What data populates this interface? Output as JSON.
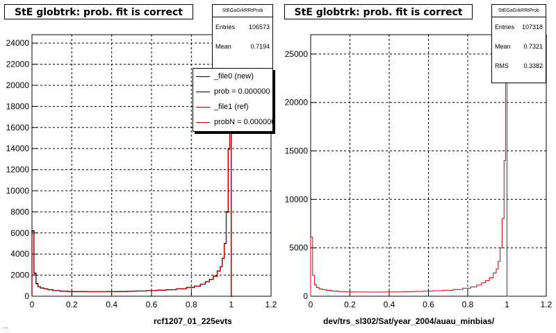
{
  "footer_text": "...",
  "chart_data": [
    {
      "type": "bar",
      "title": "StE globtrk: prob. fit is correct",
      "xlabel": "rcf1207_01_225evts",
      "ylabel": "",
      "xlim": [
        0,
        1.2
      ],
      "ylim": [
        0,
        24800
      ],
      "x_ticks": [
        "0",
        "0.2",
        "0.4",
        "0.6",
        "0.8",
        "1",
        "1.2"
      ],
      "y_ticks": [
        "0",
        "2000",
        "4000",
        "6000",
        "8000",
        "10000",
        "12000",
        "14000",
        "16000",
        "18000",
        "20000",
        "22000",
        "24000"
      ],
      "grid": true,
      "stats": {
        "header": "StEGaGrkRRtProb",
        "entries_label": "Entries",
        "entries": "106573",
        "mean_label": "Mean",
        "mean": "0.7194"
      },
      "legend": {
        "placement": "top-right",
        "entries": [
          "_file0 (new)",
          "prob = 0.000000",
          "_file1 (ref)",
          "probN = 0.000000"
        ],
        "colors": [
          "#000000",
          "#000000",
          "#cc0000",
          "#cc0000"
        ]
      },
      "series": [
        {
          "name": "_file0 (new)",
          "color": "#000000",
          "x": [
            0.005,
            0.015,
            0.025,
            0.035,
            0.05,
            0.07,
            0.09,
            0.12,
            0.16,
            0.2,
            0.25,
            0.3,
            0.35,
            0.4,
            0.45,
            0.5,
            0.55,
            0.6,
            0.65,
            0.7,
            0.75,
            0.8,
            0.83,
            0.86,
            0.88,
            0.9,
            0.92,
            0.94,
            0.95,
            0.96,
            0.97,
            0.98,
            0.99,
            0.995,
            1.005
          ],
          "values": [
            6200,
            2200,
            1200,
            900,
            780,
            700,
            620,
            540,
            480,
            450,
            440,
            430,
            430,
            440,
            450,
            470,
            500,
            530,
            570,
            620,
            700,
            830,
            960,
            1150,
            1380,
            1600,
            1900,
            2400,
            2800,
            3600,
            5000,
            8000,
            14000,
            24800,
            0
          ]
        },
        {
          "name": "_file1 (ref)",
          "color": "#cc0000",
          "x": [
            0.005,
            0.015,
            0.025,
            0.035,
            0.05,
            0.07,
            0.09,
            0.12,
            0.16,
            0.2,
            0.25,
            0.3,
            0.35,
            0.4,
            0.45,
            0.5,
            0.55,
            0.6,
            0.65,
            0.7,
            0.75,
            0.8,
            0.83,
            0.86,
            0.88,
            0.9,
            0.92,
            0.94,
            0.95,
            0.96,
            0.97,
            0.98,
            0.99,
            0.995,
            1.005
          ],
          "values": [
            6000,
            2100,
            1150,
            880,
            760,
            690,
            610,
            530,
            470,
            445,
            435,
            425,
            425,
            435,
            445,
            465,
            495,
            525,
            565,
            615,
            690,
            820,
            950,
            1140,
            1370,
            1590,
            1880,
            2380,
            2780,
            3580,
            4980,
            7950,
            13900,
            24700,
            0
          ]
        }
      ]
    },
    {
      "type": "bar",
      "title": "StE globtrk: prob. fit is correct",
      "xlabel": "dev/trs_sl302/Sat/year_2004/auau_minbias/",
      "ylabel": "",
      "xlim": [
        0,
        1.2
      ],
      "ylim": [
        0,
        27000
      ],
      "x_ticks": [
        "0",
        "0.2",
        "0.4",
        "0.6",
        "0.8",
        "1",
        "1.2"
      ],
      "y_ticks": [
        "0",
        "5000",
        "10000",
        "15000",
        "20000",
        "25000"
      ],
      "grid": true,
      "stats": {
        "header": "StEGaGrkRRtProb",
        "entries_label": "Entries",
        "entries": "107318",
        "mean_label": "Mean",
        "mean": "0.7321",
        "rms_label": "RMS",
        "rms": "0.3382"
      },
      "series": [
        {
          "name": "",
          "color": "#cc0000",
          "x": [
            0.005,
            0.015,
            0.025,
            0.035,
            0.05,
            0.07,
            0.09,
            0.12,
            0.16,
            0.2,
            0.25,
            0.3,
            0.35,
            0.4,
            0.45,
            0.5,
            0.55,
            0.6,
            0.65,
            0.7,
            0.75,
            0.8,
            0.83,
            0.86,
            0.88,
            0.9,
            0.92,
            0.94,
            0.95,
            0.96,
            0.97,
            0.98,
            0.99,
            0.995,
            1.005
          ],
          "values": [
            6100,
            2150,
            1180,
            900,
            760,
            690,
            610,
            540,
            480,
            450,
            440,
            430,
            430,
            440,
            450,
            470,
            500,
            530,
            570,
            620,
            700,
            830,
            960,
            1150,
            1380,
            1600,
            1900,
            2400,
            2800,
            3600,
            5000,
            8000,
            14000,
            25500,
            0
          ]
        }
      ]
    }
  ]
}
